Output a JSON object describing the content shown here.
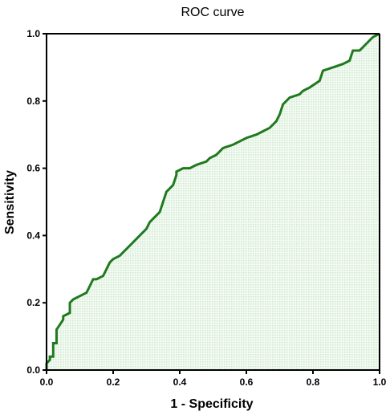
{
  "chart_data": {
    "type": "area",
    "title": "ROC curve",
    "xlabel": "1 - Specificity",
    "ylabel": "Sensitivity",
    "xlim": [
      0,
      1
    ],
    "ylim": [
      0,
      1
    ],
    "x_ticks": [
      "0.0",
      "0.2",
      "0.4",
      "0.6",
      "0.8",
      "1.0"
    ],
    "y_ticks": [
      "0.0",
      "0.2",
      "0.4",
      "0.6",
      "0.8",
      "1.0"
    ],
    "grid": false,
    "legend": "none",
    "line_color": "#1f7a1f",
    "fill_color": "#cde8cd",
    "series": [
      {
        "x": [
          0.0,
          0.0,
          0.01,
          0.01,
          0.02,
          0.02,
          0.03,
          0.03,
          0.05,
          0.05,
          0.07,
          0.07,
          0.08,
          0.1,
          0.12,
          0.13,
          0.14,
          0.15,
          0.17,
          0.18,
          0.19,
          0.2,
          0.22,
          0.23,
          0.26,
          0.27,
          0.29,
          0.3,
          0.31,
          0.33,
          0.34,
          0.35,
          0.36,
          0.37,
          0.38,
          0.39,
          0.39,
          0.41,
          0.41,
          0.43,
          0.45,
          0.48,
          0.49,
          0.51,
          0.53,
          0.56,
          0.58,
          0.6,
          0.63,
          0.65,
          0.67,
          0.69,
          0.7,
          0.71,
          0.72,
          0.73,
          0.76,
          0.77,
          0.79,
          0.82,
          0.83,
          0.86,
          0.89,
          0.91,
          0.92,
          0.94,
          0.95,
          0.97,
          0.98,
          1.0
        ],
        "y": [
          0.0,
          0.02,
          0.03,
          0.04,
          0.04,
          0.08,
          0.08,
          0.12,
          0.15,
          0.16,
          0.17,
          0.2,
          0.21,
          0.22,
          0.23,
          0.25,
          0.27,
          0.27,
          0.28,
          0.3,
          0.32,
          0.33,
          0.34,
          0.35,
          0.38,
          0.39,
          0.41,
          0.42,
          0.44,
          0.46,
          0.47,
          0.5,
          0.53,
          0.54,
          0.55,
          0.58,
          0.59,
          0.6,
          0.6,
          0.6,
          0.61,
          0.62,
          0.63,
          0.64,
          0.66,
          0.67,
          0.68,
          0.69,
          0.7,
          0.71,
          0.72,
          0.74,
          0.76,
          0.79,
          0.8,
          0.81,
          0.82,
          0.83,
          0.84,
          0.86,
          0.89,
          0.9,
          0.91,
          0.92,
          0.95,
          0.95,
          0.96,
          0.98,
          0.99,
          1.0
        ]
      }
    ]
  }
}
